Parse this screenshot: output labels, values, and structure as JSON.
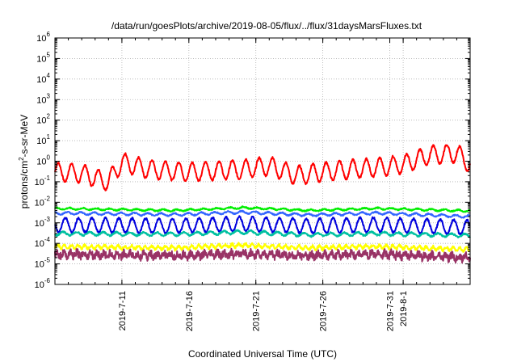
{
  "chart_data": {
    "type": "line",
    "title": "/data/run/goesPlots/archive/2019-08-05/flux/../flux/31daysMarsFluxes.txt",
    "xlabel": "Coordinated Universal Time (UTC)",
    "ylabel": {
      "pre": "protons/cm",
      "sup": "2",
      "post": "-s-sr-MeV"
    },
    "y_scale": "log",
    "ylim": [
      1e-06,
      1000000.0
    ],
    "y_ticks": [
      {
        "base": "10",
        "exp": "-6"
      },
      {
        "base": "10",
        "exp": "-5"
      },
      {
        "base": "10",
        "exp": "-4"
      },
      {
        "base": "10",
        "exp": "-3"
      },
      {
        "base": "10",
        "exp": "-2"
      },
      {
        "base": "10",
        "exp": "-1"
      },
      {
        "base": "10",
        "exp": "0"
      },
      {
        "base": "10",
        "exp": "1"
      },
      {
        "base": "10",
        "exp": "2"
      },
      {
        "base": "10",
        "exp": "3"
      },
      {
        "base": "10",
        "exp": "4"
      },
      {
        "base": "10",
        "exp": "5"
      },
      {
        "base": "10",
        "exp": "6"
      }
    ],
    "xlim": [
      "2019-07-06",
      "2019-08-06"
    ],
    "x_ticks": [
      "2019-7-11",
      "2019-7-16",
      "2019-7-21",
      "2019-7-26",
      "2019-7-31",
      "2019-8-1"
    ],
    "grid": true,
    "series": [
      {
        "color": "#ff0000",
        "level_log10": -0.7,
        "wave_amp": 0.45,
        "period_days": 1.0,
        "noise": 0.05,
        "x": [
          "2019-07-06",
          "2019-07-08",
          "2019-07-10",
          "2019-07-11",
          "2019-07-13",
          "2019-07-16",
          "2019-07-18",
          "2019-07-20",
          "2019-07-22",
          "2019-07-24",
          "2019-07-26",
          "2019-07-28",
          "2019-07-30",
          "2019-08-01",
          "2019-08-03",
          "2019-08-05",
          "2019-08-06"
        ],
        "y": [
          0.3,
          0.25,
          0.1,
          0.9,
          0.4,
          0.3,
          0.35,
          0.4,
          0.6,
          0.2,
          0.3,
          0.4,
          0.5,
          0.7,
          2.0,
          2.5,
          0.7
        ]
      },
      {
        "color": "#00ee00",
        "level_log10": -2.35,
        "wave_amp": 0.04,
        "period_days": 1.0,
        "noise": 0.03,
        "x": [
          "2019-07-06",
          "2019-07-15",
          "2019-07-20",
          "2019-07-25",
          "2019-07-30",
          "2019-08-06"
        ],
        "y": [
          0.005,
          0.004,
          0.0055,
          0.004,
          0.005,
          0.0038
        ]
      },
      {
        "color": "#3366ff",
        "level_log10": -2.6,
        "wave_amp": 0.06,
        "period_days": 1.0,
        "noise": 0.03,
        "x": [
          "2019-07-06",
          "2019-07-15",
          "2019-07-20",
          "2019-07-25",
          "2019-07-30",
          "2019-08-06"
        ],
        "y": [
          0.003,
          0.0025,
          0.0033,
          0.0024,
          0.003,
          0.002
        ]
      },
      {
        "color": "#0000dd",
        "level_log10": -3.1,
        "wave_amp": 0.35,
        "period_days": 1.0,
        "noise": 0.05,
        "x": [
          "2019-07-06",
          "2019-07-15",
          "2019-07-20",
          "2019-07-25",
          "2019-07-30",
          "2019-08-06"
        ],
        "y": [
          0.0008,
          0.0007,
          0.0009,
          0.0007,
          0.0008,
          0.0006
        ]
      },
      {
        "color": "#00c0a0",
        "level_log10": -3.55,
        "wave_amp": 0.08,
        "period_days": 1.0,
        "noise": 0.04,
        "x": [
          "2019-07-06",
          "2019-07-15",
          "2019-07-20",
          "2019-07-25",
          "2019-07-30",
          "2019-08-06"
        ],
        "y": [
          0.0003,
          0.00028,
          0.00035,
          0.00026,
          0.0003,
          0.00024
        ]
      },
      {
        "color": "#ffff00",
        "level_log10": -4.15,
        "wave_amp": 0.08,
        "period_days": 0.5,
        "noise": 0.07,
        "x": [
          "2019-07-06",
          "2019-07-15",
          "2019-07-20",
          "2019-07-25",
          "2019-07-30",
          "2019-08-06"
        ],
        "y": [
          7e-05,
          6e-05,
          8e-05,
          6e-05,
          7e-05,
          5e-05
        ]
      },
      {
        "color": "#993366",
        "level_log10": -4.55,
        "wave_amp": 0.1,
        "period_days": 0.5,
        "noise": 0.18,
        "x": [
          "2019-07-06",
          "2019-07-15",
          "2019-07-20",
          "2019-07-25",
          "2019-07-30",
          "2019-08-06"
        ],
        "y": [
          3e-05,
          2.5e-05,
          3e-05,
          2.5e-05,
          3e-05,
          2e-05
        ]
      }
    ]
  }
}
